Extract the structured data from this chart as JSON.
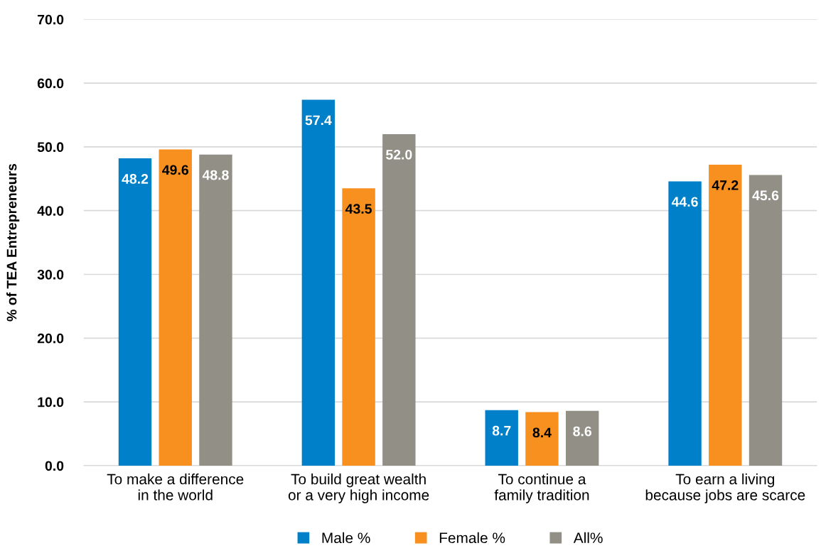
{
  "chart_data": {
    "type": "bar",
    "ylabel": "% of TEA Entrepreneurs",
    "categories": [
      "To make a difference in the world",
      "To build great wealth or a very high income",
      "To continue a family tradition",
      "To earn a living because jobs are scarce"
    ],
    "series": [
      {
        "name": "Male %",
        "color": "#0080c8",
        "values": [
          48.2,
          57.4,
          8.7,
          44.6
        ],
        "value_labels": [
          "48.2",
          "57.4",
          "8.7",
          "44.6"
        ]
      },
      {
        "name": "Female %",
        "color": "#f7901e",
        "values": [
          49.6,
          43.5,
          8.4,
          47.2
        ],
        "value_labels": [
          "49.6",
          "43.5",
          "8.4",
          "47.2"
        ]
      },
      {
        "name": "All%",
        "color": "#918f86",
        "values": [
          48.8,
          52.0,
          8.6,
          45.6
        ],
        "value_labels": [
          "48.8",
          "52.0",
          "8.6",
          "45.6"
        ]
      }
    ],
    "ylim": [
      0,
      70
    ],
    "yticks": [
      {
        "value": 0,
        "label": "0.0"
      },
      {
        "value": 10,
        "label": "10.0"
      },
      {
        "value": 20,
        "label": "20.0"
      },
      {
        "value": 30,
        "label": "30.0"
      },
      {
        "value": 40,
        "label": "40.0"
      },
      {
        "value": 50,
        "label": "50.0"
      },
      {
        "value": 60,
        "label": "60.0"
      },
      {
        "value": 70,
        "label": "70.0"
      }
    ],
    "grid": "y",
    "legend": "bottom"
  }
}
